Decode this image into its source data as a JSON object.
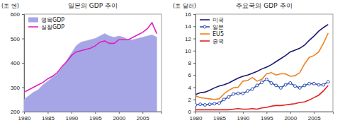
{
  "chart_data": [
    {
      "type": "area",
      "title": "일본의 GDP 추이",
      "y_label": "(조 엔)",
      "x": [
        1980,
        1981,
        1982,
        1983,
        1984,
        1985,
        1986,
        1987,
        1988,
        1989,
        1990,
        1991,
        1992,
        1993,
        1994,
        1995,
        1996,
        1997,
        1998,
        1999,
        2000,
        2001,
        2002,
        2003,
        2004,
        2005,
        2006,
        2007,
        2008
      ],
      "series": [
        {
          "name": "명목GDP",
          "type": "area",
          "color": "#a6a6e6",
          "values": [
            250,
            265,
            280,
            290,
            310,
            325,
            340,
            355,
            380,
            410,
            440,
            470,
            485,
            490,
            495,
            500,
            510,
            520,
            510,
            505,
            510,
            505,
            495,
            495,
            500,
            505,
            510,
            515,
            505
          ]
        },
        {
          "name": "실질GDP",
          "type": "line",
          "color": "#e020c0",
          "values": [
            280,
            290,
            300,
            310,
            320,
            335,
            345,
            360,
            385,
            405,
            430,
            445,
            450,
            455,
            460,
            470,
            485,
            490,
            480,
            480,
            495,
            495,
            495,
            505,
            515,
            525,
            540,
            565,
            520
          ]
        }
      ],
      "xlim": [
        1980,
        2009
      ],
      "xticks": [
        1980,
        1985,
        1990,
        1995,
        2000,
        2005
      ],
      "ylim": [
        200,
        600
      ],
      "yticks": [
        200,
        300,
        400,
        500,
        600
      ],
      "legend": "top-left"
    },
    {
      "type": "line",
      "title": "주요국의 GDP 추이",
      "y_label": "(조 달러)",
      "x": [
        1980,
        1981,
        1982,
        1983,
        1984,
        1985,
        1986,
        1987,
        1988,
        1989,
        1990,
        1991,
        1992,
        1993,
        1994,
        1995,
        1996,
        1997,
        1998,
        1999,
        2000,
        2001,
        2002,
        2003,
        2004,
        2005,
        2006,
        2007,
        2008
      ],
      "series": [
        {
          "name": "미국",
          "color": "#1a1a6e",
          "values": [
            2.8,
            3.1,
            3.2,
            3.5,
            3.9,
            4.2,
            4.4,
            4.7,
            5.1,
            5.5,
            5.8,
            6.0,
            6.3,
            6.6,
            7.0,
            7.3,
            7.7,
            8.2,
            8.7,
            9.2,
            9.8,
            10.1,
            10.4,
            10.9,
            11.7,
            12.4,
            13.2,
            13.8,
            14.3
          ]
        },
        {
          "name": "일본",
          "color": "#3050b0",
          "marker": "circle",
          "values": [
            1.1,
            1.2,
            1.1,
            1.2,
            1.3,
            1.4,
            2.0,
            2.4,
            2.9,
            3.0,
            3.0,
            3.4,
            3.7,
            4.3,
            4.8,
            5.3,
            4.7,
            4.3,
            3.9,
            4.4,
            4.7,
            4.2,
            3.9,
            4.3,
            4.6,
            4.6,
            4.4,
            4.4,
            4.9
          ]
        },
        {
          "name": "EU5",
          "color": "#f08020",
          "values": [
            2.6,
            2.3,
            2.2,
            2.1,
            2.0,
            2.1,
            2.9,
            3.5,
            3.9,
            4.0,
            5.0,
            5.1,
            5.6,
            5.0,
            5.3,
            6.2,
            6.4,
            6.0,
            6.2,
            6.2,
            5.8,
            5.9,
            6.4,
            7.8,
            8.9,
            9.2,
            9.8,
            11.2,
            12.9
          ]
        },
        {
          "name": "중국",
          "color": "#e02020",
          "values": [
            0.3,
            0.3,
            0.3,
            0.3,
            0.3,
            0.3,
            0.3,
            0.3,
            0.4,
            0.5,
            0.4,
            0.4,
            0.5,
            0.4,
            0.6,
            0.7,
            0.9,
            1.0,
            1.0,
            1.1,
            1.2,
            1.3,
            1.5,
            1.6,
            1.9,
            2.3,
            2.7,
            3.4,
            4.3
          ]
        }
      ],
      "xlim": [
        1980,
        2009
      ],
      "xticks": [
        1980,
        1985,
        1990,
        1995,
        2000,
        2005
      ],
      "ylim": [
        0,
        16
      ],
      "yticks": [
        0,
        2,
        4,
        6,
        8,
        10,
        12,
        14,
        16
      ],
      "legend": "top-left"
    }
  ]
}
